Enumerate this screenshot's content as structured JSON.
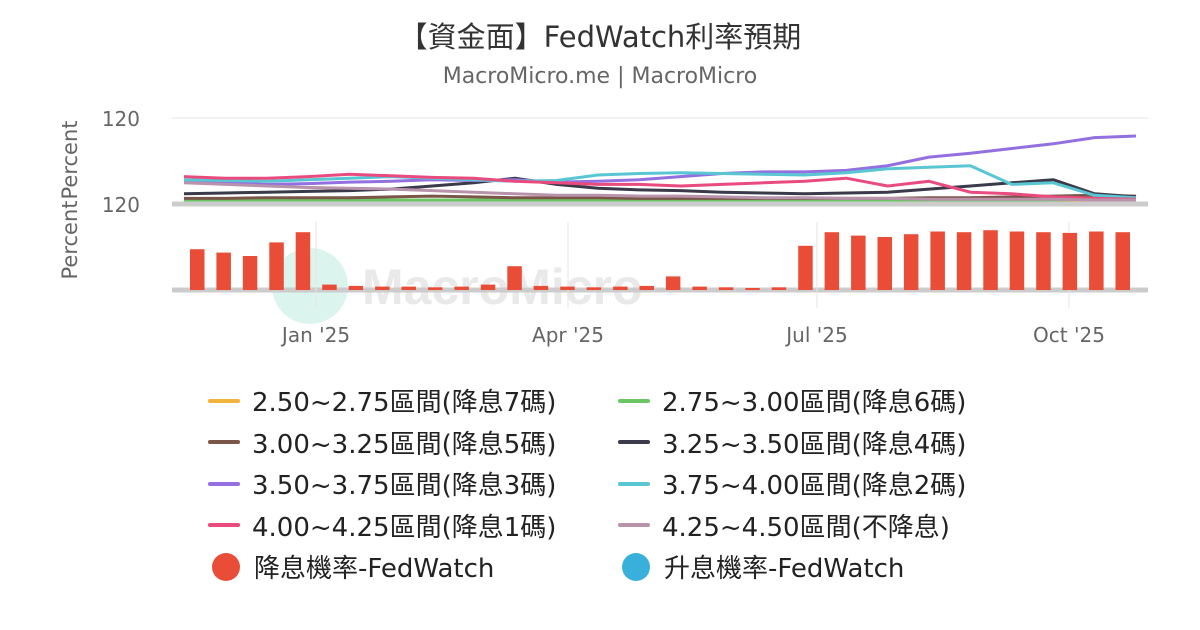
{
  "title": "【資金面】FedWatch利率預期",
  "subtitle": "MacroMicro.me | MacroMicro",
  "watermark": "MacroMicro",
  "chart_data": {
    "type": "line",
    "upper_panel": {
      "ylabel": "Percent",
      "tick_labels": [
        "120"
      ],
      "ylim": [
        0,
        100
      ]
    },
    "lower_panel": {
      "ylabel": "Percent",
      "tick_labels": [
        "120"
      ],
      "ylim": [
        0,
        100
      ],
      "type": "bar"
    },
    "x_tick_labels": [
      "Jan '25",
      "Apr '25",
      "Jul '25",
      "Oct '25"
    ],
    "grid": true,
    "legend_position": "bottom",
    "series": [
      {
        "name": "2.50~2.75區間(降息7碼)",
        "color": "#f2b33d",
        "values": [
          0,
          0,
          0,
          0,
          0,
          0,
          0,
          0,
          0,
          0,
          0,
          0,
          0,
          0,
          0,
          0,
          0,
          0,
          0,
          0,
          0,
          0,
          0,
          0
        ]
      },
      {
        "name": "2.75~3.00區間(降息6碼)",
        "color": "#6cc664",
        "values": [
          0,
          0,
          0,
          0,
          0,
          0,
          0,
          0,
          0,
          0,
          0,
          0,
          0,
          0,
          0,
          0,
          0,
          0,
          0,
          0,
          0,
          0,
          1,
          2
        ]
      },
      {
        "name": "3.00~3.25區間(降息5碼)",
        "color": "#7a5548",
        "values": [
          2,
          2,
          3,
          3,
          3,
          4,
          5,
          4,
          3,
          3,
          3,
          2,
          2,
          2,
          2,
          2,
          2,
          2,
          3,
          3,
          4,
          5,
          6,
          5
        ]
      },
      {
        "name": "3.25~3.50區間(降息4碼)",
        "color": "#3a3a4a",
        "values": [
          8,
          9,
          10,
          11,
          12,
          14,
          18,
          22,
          28,
          20,
          15,
          13,
          12,
          10,
          9,
          8,
          9,
          10,
          14,
          18,
          22,
          26,
          8,
          4
        ]
      },
      {
        "name": "3.50~3.75區間(降息3碼)",
        "color": "#9370e0",
        "values": [
          24,
          22,
          20,
          21,
          23,
          24,
          26,
          25,
          26,
          23,
          24,
          26,
          30,
          34,
          36,
          36,
          38,
          44,
          55,
          60,
          66,
          72,
          80,
          82
        ]
      },
      {
        "name": "3.75~4.00區間(降息2碼)",
        "color": "#59c6d3",
        "values": [
          26,
          25,
          24,
          26,
          28,
          30,
          28,
          26,
          24,
          25,
          32,
          34,
          35,
          34,
          33,
          32,
          35,
          40,
          42,
          44,
          20,
          22,
          6,
          3
        ]
      },
      {
        "name": "4.00~4.25區間(降息1碼)",
        "color": "#ea4b7e",
        "values": [
          30,
          28,
          28,
          30,
          33,
          31,
          29,
          28,
          24,
          22,
          20,
          20,
          18,
          20,
          22,
          24,
          28,
          18,
          24,
          10,
          8,
          4,
          2,
          1
        ]
      },
      {
        "name": "4.25~4.50區間(不降息)",
        "color": "#b893ab",
        "values": [
          22,
          20,
          18,
          16,
          15,
          14,
          12,
          10,
          8,
          6,
          6,
          5,
          5,
          4,
          3,
          3,
          2,
          2,
          1,
          1,
          1,
          1,
          0,
          0
        ]
      }
    ],
    "bar_series": [
      {
        "name": "降息機率-FedWatch",
        "color": "#e94d37",
        "values": [
          60,
          55,
          50,
          70,
          85,
          8,
          6,
          5,
          5,
          4,
          5,
          8,
          35,
          6,
          5,
          4,
          5,
          6,
          20,
          5,
          4,
          3,
          4,
          65,
          85,
          80,
          78,
          82,
          86,
          85,
          88,
          86,
          85,
          84,
          86,
          85
        ]
      },
      {
        "name": "升息機率-FedWatch",
        "color": "#39b0dc",
        "values": []
      }
    ]
  },
  "legend": [
    {
      "label": "2.50~2.75區間(降息7碼)",
      "color": "#f2b33d",
      "marker": "line"
    },
    {
      "label": "2.75~3.00區間(降息6碼)",
      "color": "#6cc664",
      "marker": "line"
    },
    {
      "label": "3.00~3.25區間(降息5碼)",
      "color": "#7a5548",
      "marker": "line"
    },
    {
      "label": "3.25~3.50區間(降息4碼)",
      "color": "#3a3a4a",
      "marker": "line"
    },
    {
      "label": "3.50~3.75區間(降息3碼)",
      "color": "#9370e0",
      "marker": "line"
    },
    {
      "label": "3.75~4.00區間(降息2碼)",
      "color": "#59c6d3",
      "marker": "line"
    },
    {
      "label": "4.00~4.25區間(降息1碼)",
      "color": "#ea4b7e",
      "marker": "line"
    },
    {
      "label": "4.25~4.50區間(不降息)",
      "color": "#b893ab",
      "marker": "line"
    },
    {
      "label": "降息機率-FedWatch",
      "color": "#e94d37",
      "marker": "dot"
    },
    {
      "label": "升息機率-FedWatch",
      "color": "#39b0dc",
      "marker": "dot"
    }
  ]
}
